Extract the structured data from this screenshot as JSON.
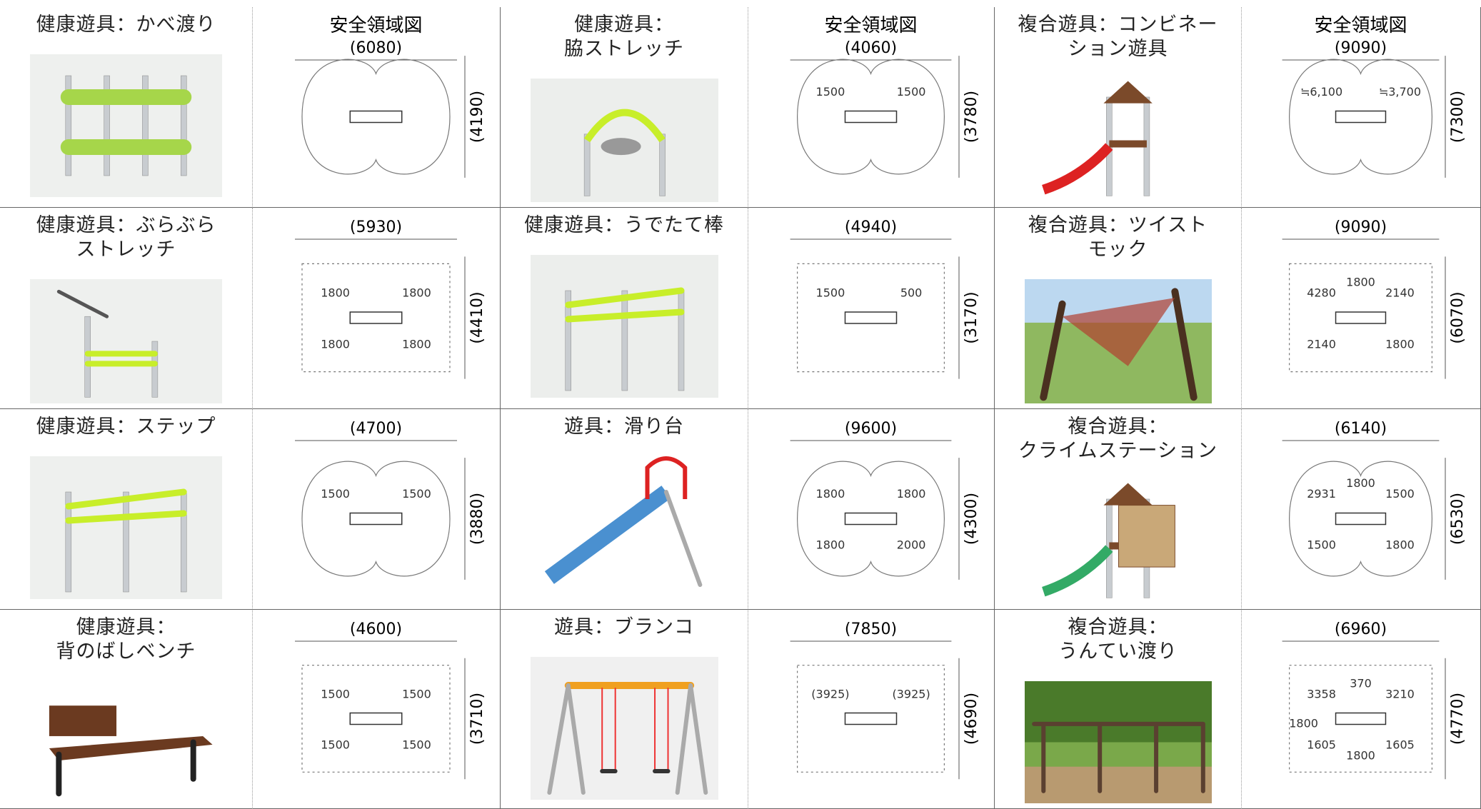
{
  "table": {
    "rows": [
      {
        "cells": [
          {
            "lines": [
              "健康遊具：かべ渡り"
            ]
          },
          {
            "title": "安全領域図",
            "width": "(6080)",
            "depth": "(4190)",
            "labels": []
          },
          {
            "lines": [
              "健康遊具：",
              "脇ストレッチ"
            ]
          },
          {
            "title": "安全領域図",
            "width": "(4060)",
            "depth": "(3780)",
            "labels": [
              "1500",
              "1500"
            ]
          },
          {
            "lines": [
              "複合遊具：コンビネー",
              "ション遊具"
            ]
          },
          {
            "title": "安全領域図",
            "width": "(9090)",
            "depth": "(7300)",
            "labels": [
              "≒6,100",
              "≒3,700"
            ]
          }
        ]
      },
      {
        "cells": [
          {
            "lines": [
              "健康遊具：ぶらぶら",
              "ストレッチ"
            ]
          },
          {
            "width": "(5930)",
            "depth": "(4410)",
            "labels": [
              "1800",
              "1800",
              "1800",
              "1800"
            ]
          },
          {
            "lines": [
              "健康遊具：うでたて棒"
            ]
          },
          {
            "width": "(4940)",
            "depth": "(3170)",
            "labels": [
              "1500",
              "500"
            ]
          },
          {
            "lines": [
              "複合遊具：ツイスト",
              "モック"
            ]
          },
          {
            "width": "(9090)",
            "depth": "(6070)",
            "labels": [
              "4280",
              "2140",
              "2140",
              "1800",
              "1800"
            ]
          }
        ]
      },
      {
        "cells": [
          {
            "lines": [
              "健康遊具：ステップ"
            ]
          },
          {
            "width": "(4700)",
            "depth": "(3880)",
            "labels": [
              "1500",
              "1500"
            ]
          },
          {
            "lines": [
              "遊具：滑り台"
            ]
          },
          {
            "width": "(9600)",
            "depth": "(4300)",
            "labels": [
              "1800",
              "1800",
              "1800",
              "2000"
            ]
          },
          {
            "lines": [
              "複合遊具：",
              "クライムステーション"
            ]
          },
          {
            "width": "(6140)",
            "depth": "(6530)",
            "labels": [
              "2931",
              "1500",
              "1500",
              "1800",
              "1800"
            ]
          }
        ]
      },
      {
        "cells": [
          {
            "lines": [
              "健康遊具：",
              "背のばしベンチ"
            ]
          },
          {
            "width": "(4600)",
            "depth": "(3710)",
            "labels": [
              "1500",
              "1500",
              "1500",
              "1500"
            ]
          },
          {
            "lines": [
              "遊具：ブランコ"
            ]
          },
          {
            "width": "(7850)",
            "depth": "(4690)",
            "labels": [
              "(3925)",
              "(3925)"
            ]
          },
          {
            "lines": [
              "複合遊具：",
              "うんてい渡り"
            ]
          },
          {
            "width": "(6960)",
            "depth": "(4770)",
            "labels": [
              "3358",
              "3210",
              "1605",
              "1605",
              "370",
              "1800",
              "1800"
            ]
          }
        ]
      }
    ]
  }
}
